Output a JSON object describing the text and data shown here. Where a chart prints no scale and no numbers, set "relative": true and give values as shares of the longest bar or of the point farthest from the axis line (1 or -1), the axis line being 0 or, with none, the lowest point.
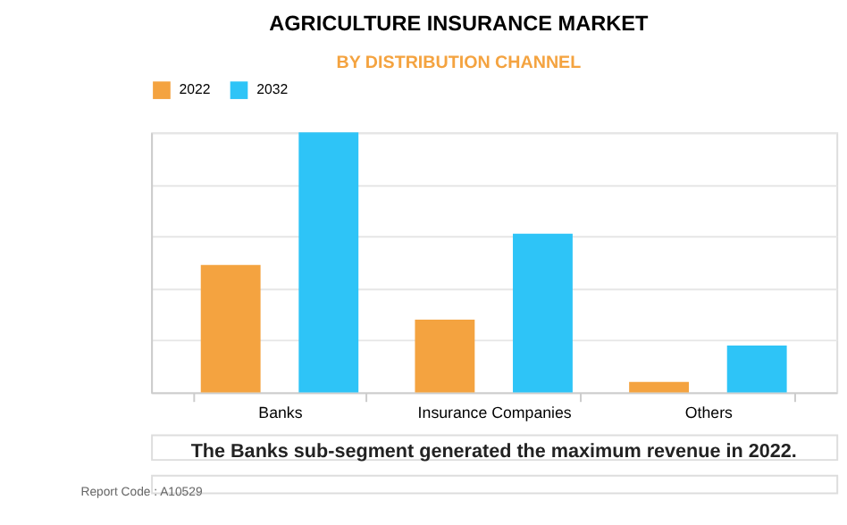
{
  "chart_data": {
    "type": "bar",
    "title": "AGRICULTURE INSURANCE MARKET",
    "subtitle": "BY DISTRIBUTION CHANNEL",
    "categories": [
      "Banks",
      "Insurance Companies",
      "Others"
    ],
    "series": [
      {
        "name": "2022",
        "color": "#f4a340",
        "values": [
          0.49,
          0.28,
          0.04
        ]
      },
      {
        "name": "2032",
        "color": "#2ec4f7",
        "values": [
          1,
          0.61,
          0.18
        ]
      }
    ],
    "relative": true,
    "grid": "y",
    "legend": "top",
    "annotations": [
      "The Banks sub-segment generated the maximum revenue in 2022.",
      "Report Code : A10529"
    ]
  }
}
